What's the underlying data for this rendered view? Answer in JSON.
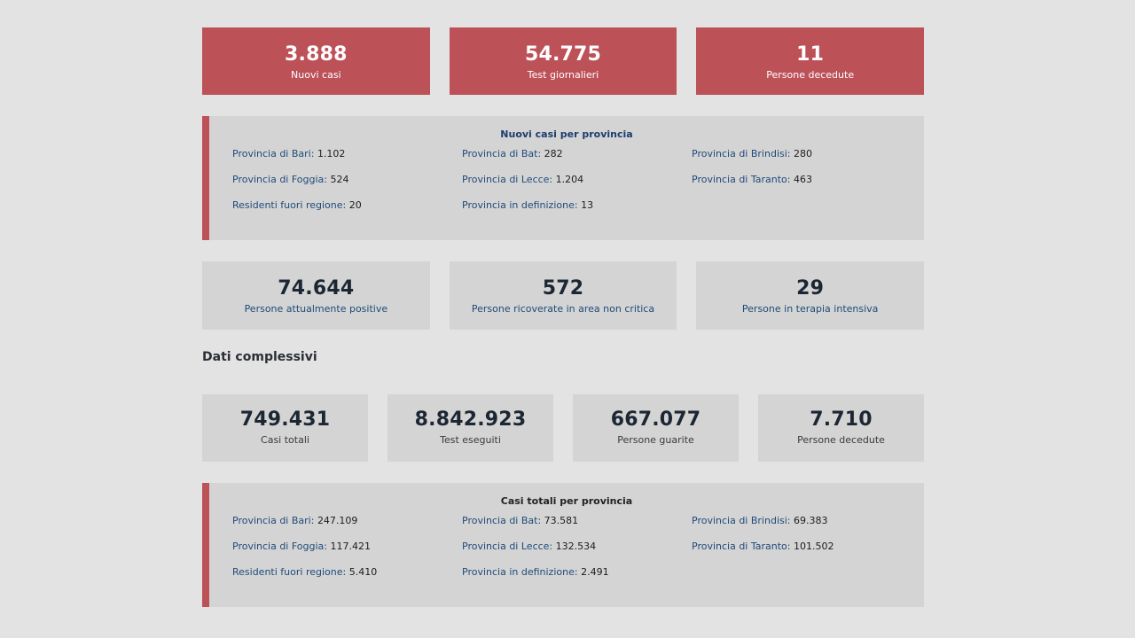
{
  "daily": [
    {
      "value": "3.888",
      "label": "Nuovi casi"
    },
    {
      "value": "54.775",
      "label": "Test giornalieri"
    },
    {
      "value": "11",
      "label": "Persone decedute"
    }
  ],
  "new_by_province": {
    "title": "Nuovi casi per provincia",
    "items": [
      {
        "label": "Provincia di Bari:",
        "value": "1.102"
      },
      {
        "label": "Provincia di Bat:",
        "value": "282"
      },
      {
        "label": "Provincia di Brindisi:",
        "value": "280"
      },
      {
        "label": "Provincia di Foggia:",
        "value": "524"
      },
      {
        "label": "Provincia di Lecce:",
        "value": "1.204"
      },
      {
        "label": "Provincia di Taranto:",
        "value": "463"
      },
      {
        "label": "Residenti fuori regione:",
        "value": "20"
      },
      {
        "label": "Provincia in definizione:",
        "value": "13"
      }
    ]
  },
  "current": [
    {
      "value": "74.644",
      "label": "Persone attualmente positive"
    },
    {
      "value": "572",
      "label": "Persone ricoverate in area non critica"
    },
    {
      "value": "29",
      "label": "Persone in terapia intensiva"
    }
  ],
  "section_title": "Dati complessivi",
  "totals": [
    {
      "value": "749.431",
      "label": "Casi totali"
    },
    {
      "value": "8.842.923",
      "label": "Test eseguiti"
    },
    {
      "value": "667.077",
      "label": "Persone guarite"
    },
    {
      "value": "7.710",
      "label": "Persone decedute"
    }
  ],
  "totals_by_province": {
    "title": "Casi totali per provincia",
    "items": [
      {
        "label": "Provincia di Bari:",
        "value": "247.109"
      },
      {
        "label": "Provincia di Bat:",
        "value": "73.581"
      },
      {
        "label": "Provincia di Brindisi:",
        "value": "69.383"
      },
      {
        "label": "Provincia di Foggia:",
        "value": "117.421"
      },
      {
        "label": "Provincia di Lecce:",
        "value": "132.534"
      },
      {
        "label": "Provincia di Taranto:",
        "value": "101.502"
      },
      {
        "label": "Residenti fuori regione:",
        "value": "5.410"
      },
      {
        "label": "Provincia in definizione:",
        "value": "2.491"
      }
    ]
  },
  "colors": {
    "accent": "#bd5158",
    "card": "#d4d4d4",
    "background": "#e3e3e3"
  }
}
